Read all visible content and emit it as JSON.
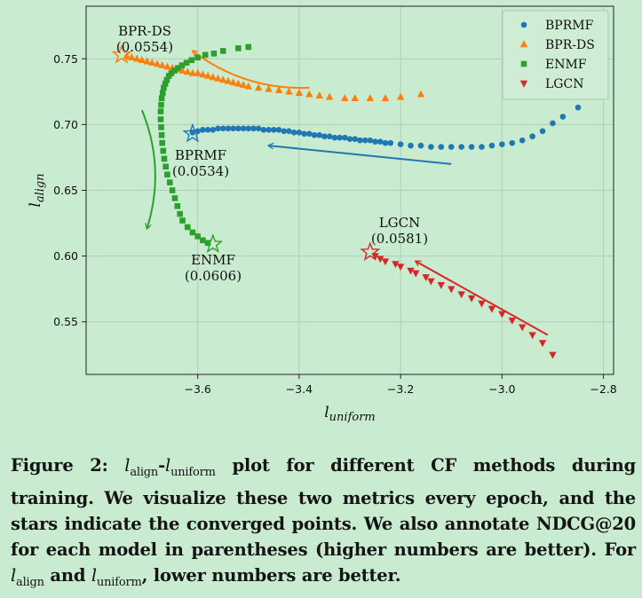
{
  "chart_data": {
    "type": "scatter",
    "xlabel_main": "l",
    "xlabel_sub": "uniform",
    "ylabel_main": "l",
    "ylabel_sub": "align",
    "xlim": [
      -3.82,
      -2.78
    ],
    "ylim": [
      0.51,
      0.79
    ],
    "xticks": [
      -3.6,
      -3.4,
      -3.2,
      -3.0,
      -2.8
    ],
    "xtick_labels": [
      "−3.6",
      "−3.4",
      "−3.2",
      "−3.0",
      "−2.8"
    ],
    "yticks": [
      0.55,
      0.6,
      0.65,
      0.7,
      0.75
    ],
    "ytick_labels": [
      "0.55",
      "0.60",
      "0.65",
      "0.70",
      "0.75"
    ],
    "grid": true,
    "legend": "top-right",
    "series": [
      {
        "name": "BPRMF",
        "marker": "circle",
        "color": "#1f77b4",
        "x": [
          -3.61,
          -3.6,
          -3.59,
          -3.58,
          -3.57,
          -3.56,
          -3.55,
          -3.54,
          -3.53,
          -3.52,
          -3.51,
          -3.5,
          -3.49,
          -3.48,
          -3.47,
          -3.46,
          -3.45,
          -3.44,
          -3.43,
          -3.42,
          -3.41,
          -3.4,
          -3.39,
          -3.38,
          -3.37,
          -3.36,
          -3.35,
          -3.34,
          -3.33,
          -3.32,
          -3.31,
          -3.3,
          -3.29,
          -3.28,
          -3.27,
          -3.26,
          -3.25,
          -3.24,
          -3.23,
          -3.22,
          -3.2,
          -3.18,
          -3.16,
          -3.14,
          -3.12,
          -3.1,
          -3.08,
          -3.06,
          -3.04,
          -3.02,
          -3.0,
          -2.98,
          -2.96,
          -2.94,
          -2.92,
          -2.9,
          -2.88,
          -2.85
        ],
        "y": [
          0.694,
          0.695,
          0.696,
          0.696,
          0.696,
          0.697,
          0.697,
          0.697,
          0.697,
          0.697,
          0.697,
          0.697,
          0.697,
          0.697,
          0.696,
          0.696,
          0.696,
          0.696,
          0.695,
          0.695,
          0.694,
          0.694,
          0.693,
          0.693,
          0.692,
          0.692,
          0.691,
          0.691,
          0.69,
          0.69,
          0.69,
          0.689,
          0.689,
          0.688,
          0.688,
          0.688,
          0.687,
          0.687,
          0.686,
          0.686,
          0.685,
          0.684,
          0.684,
          0.683,
          0.683,
          0.683,
          0.683,
          0.683,
          0.683,
          0.684,
          0.685,
          0.686,
          0.688,
          0.691,
          0.695,
          0.701,
          0.706,
          0.713
        ],
        "converged": {
          "x": -3.61,
          "y": 0.693
        }
      },
      {
        "name": "BPR-DS",
        "marker": "triangle-up",
        "color": "#ff7f0e",
        "x": [
          -3.74,
          -3.73,
          -3.72,
          -3.71,
          -3.7,
          -3.69,
          -3.68,
          -3.67,
          -3.66,
          -3.65,
          -3.64,
          -3.63,
          -3.62,
          -3.61,
          -3.6,
          -3.59,
          -3.58,
          -3.57,
          -3.56,
          -3.55,
          -3.54,
          -3.53,
          -3.52,
          -3.51,
          -3.5,
          -3.48,
          -3.46,
          -3.44,
          -3.42,
          -3.4,
          -3.38,
          -3.36,
          -3.34,
          -3.31,
          -3.29,
          -3.26,
          -3.23,
          -3.2,
          -3.16
        ],
        "y": [
          0.752,
          0.751,
          0.75,
          0.749,
          0.748,
          0.747,
          0.746,
          0.745,
          0.744,
          0.743,
          0.742,
          0.741,
          0.74,
          0.739,
          0.739,
          0.738,
          0.737,
          0.736,
          0.735,
          0.734,
          0.733,
          0.732,
          0.731,
          0.73,
          0.729,
          0.728,
          0.727,
          0.726,
          0.725,
          0.724,
          0.723,
          0.722,
          0.721,
          0.72,
          0.72,
          0.72,
          0.72,
          0.721,
          0.723
        ],
        "converged": {
          "x": -3.75,
          "y": 0.753
        }
      },
      {
        "name": "ENMF",
        "marker": "square",
        "color": "#2ca02c",
        "x": [
          -3.58,
          -3.59,
          -3.6,
          -3.61,
          -3.62,
          -3.63,
          -3.635,
          -3.64,
          -3.645,
          -3.65,
          -3.655,
          -3.66,
          -3.663,
          -3.666,
          -3.668,
          -3.67,
          -3.671,
          -3.672,
          -3.673,
          -3.673,
          -3.672,
          -3.671,
          -3.669,
          -3.667,
          -3.664,
          -3.661,
          -3.657,
          -3.652,
          -3.646,
          -3.639,
          -3.631,
          -3.622,
          -3.612,
          -3.6,
          -3.585,
          -3.568,
          -3.55,
          -3.52,
          -3.5
        ],
        "y": [
          0.61,
          0.612,
          0.615,
          0.618,
          0.622,
          0.627,
          0.632,
          0.638,
          0.644,
          0.65,
          0.656,
          0.662,
          0.668,
          0.674,
          0.68,
          0.686,
          0.692,
          0.698,
          0.704,
          0.71,
          0.715,
          0.72,
          0.724,
          0.728,
          0.731,
          0.734,
          0.737,
          0.739,
          0.741,
          0.743,
          0.745,
          0.747,
          0.749,
          0.751,
          0.753,
          0.754,
          0.756,
          0.758,
          0.759
        ],
        "converged": {
          "x": -3.57,
          "y": 0.609
        }
      },
      {
        "name": "LGCN",
        "marker": "triangle-down",
        "color": "#d62728",
        "x": [
          -3.25,
          -3.24,
          -3.23,
          -3.21,
          -3.2,
          -3.18,
          -3.17,
          -3.15,
          -3.14,
          -3.12,
          -3.1,
          -3.08,
          -3.06,
          -3.04,
          -3.02,
          -3.0,
          -2.98,
          -2.96,
          -2.94,
          -2.92,
          -2.9
        ],
        "y": [
          0.6,
          0.598,
          0.596,
          0.594,
          0.592,
          0.589,
          0.587,
          0.584,
          0.581,
          0.578,
          0.575,
          0.571,
          0.568,
          0.564,
          0.56,
          0.556,
          0.551,
          0.546,
          0.54,
          0.534,
          0.525
        ],
        "converged": {
          "x": -3.26,
          "y": 0.603
        }
      }
    ],
    "annotations": [
      {
        "lines": [
          "BPR-DS",
          "(0.0554)"
        ]
      },
      {
        "lines": [
          "BPRMF",
          "(0.0534)"
        ]
      },
      {
        "lines": [
          "ENMF",
          "(0.0606)"
        ]
      },
      {
        "lines": [
          "LGCN",
          "(0.0581)"
        ]
      }
    ],
    "arrows": [
      {
        "series": "BPR-DS",
        "from": [
          -3.38,
          0.728
        ],
        "to": [
          -3.61,
          0.756
        ],
        "curve": true
      },
      {
        "series": "BPRMF",
        "from": [
          -3.1,
          0.67
        ],
        "to": [
          -3.46,
          0.684
        ],
        "curve": false
      },
      {
        "series": "ENMF",
        "from": [
          -3.71,
          0.711
        ],
        "to": [
          -3.7,
          0.621
        ],
        "curve": true
      },
      {
        "series": "LGCN",
        "from": [
          -2.91,
          0.54
        ],
        "to": [
          -3.17,
          0.596
        ],
        "curve": false
      }
    ]
  },
  "caption": {
    "prefix": "Figure 2:",
    "l": "l",
    "sub_align": "align",
    "dash": "-",
    "sub_uniform": "uniform",
    "text1": "plot for different CF methods during training. We visualize these two metrics every epoch, and the stars indicate the converged points. We also annotate NDCG@20 for each model in parentheses (higher numbers are better). For",
    "and": "and",
    "text2": ", lower numbers are better."
  }
}
